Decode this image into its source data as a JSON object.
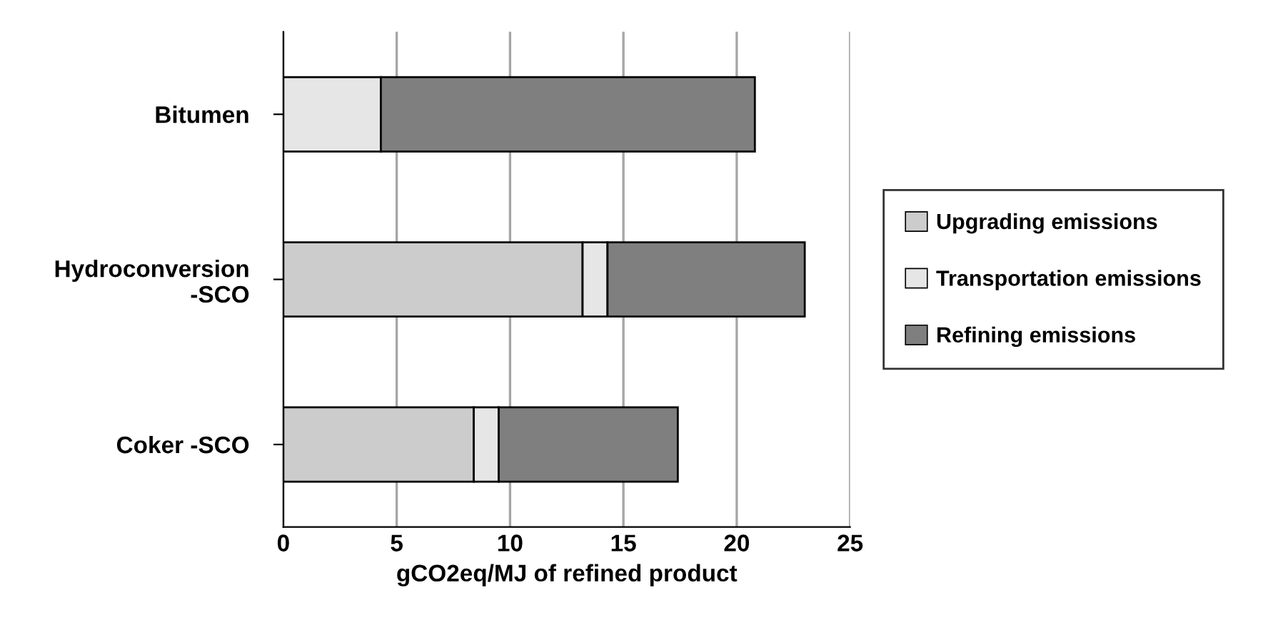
{
  "chart_data": {
    "type": "bar",
    "orientation": "horizontal",
    "stacked": true,
    "xlabel": "gCO2eq/MJ of refined product",
    "categories": [
      "Bitumen",
      "Hydroconversion\n-SCO",
      "Coker -SCO"
    ],
    "series": [
      {
        "name": "Upgrading emissions",
        "color": "#cccccc",
        "values": [
          0,
          13.2,
          8.4
        ]
      },
      {
        "name": "Transportation emissions",
        "color": "#e6e6e6",
        "values": [
          4.3,
          1.1,
          1.1
        ]
      },
      {
        "name": "Refining emissions",
        "color": "#7f7f7f",
        "values": [
          16.5,
          8.7,
          7.9
        ]
      }
    ],
    "xlim": [
      0,
      25
    ],
    "xticks": [
      0,
      5,
      10,
      15,
      20,
      25
    ],
    "grid": "x",
    "legend": "right"
  }
}
